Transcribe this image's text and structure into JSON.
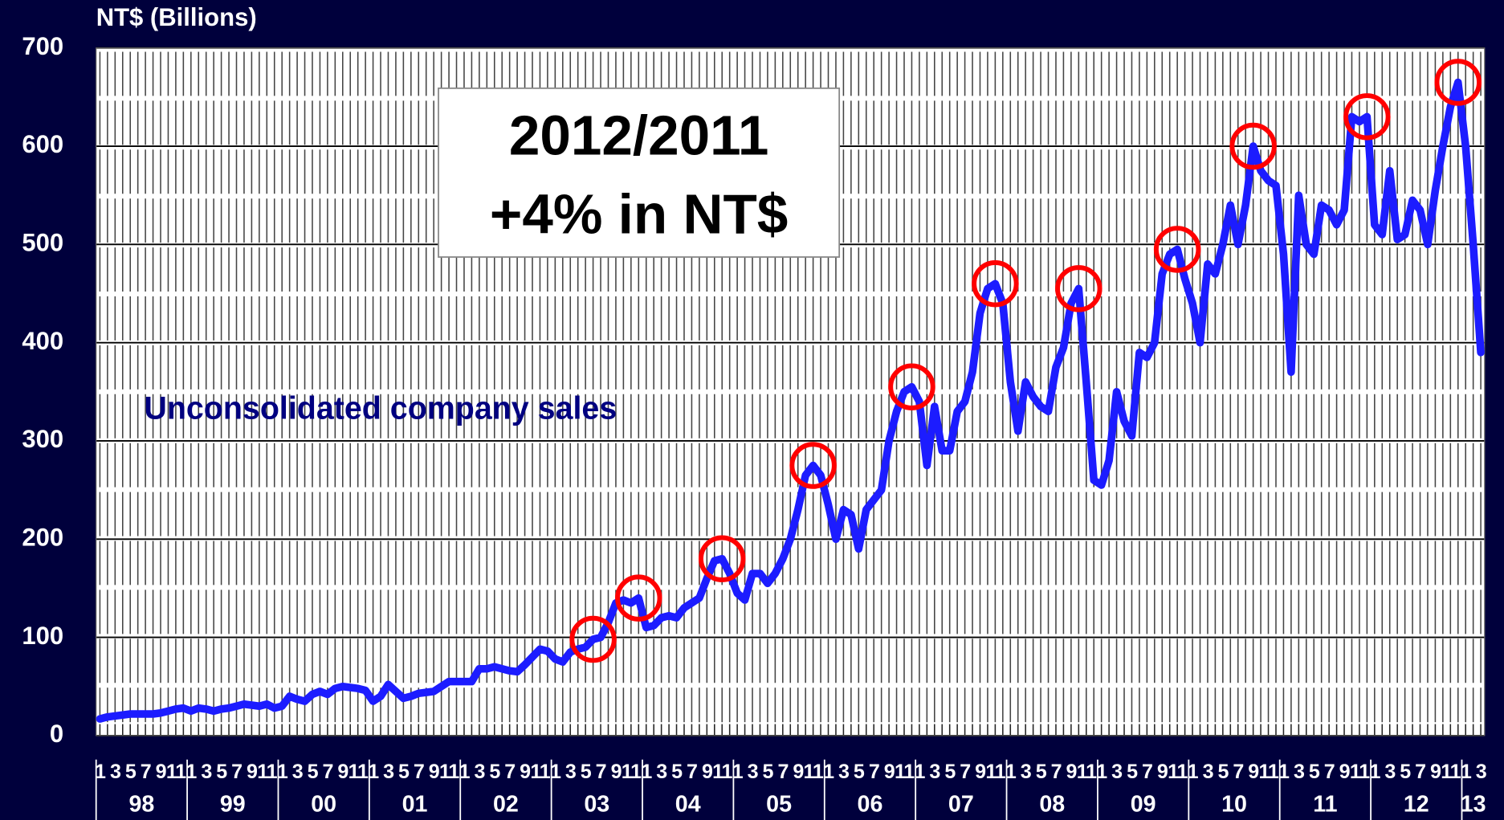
{
  "chart_data": {
    "type": "line",
    "y_axis_label": "NT$ (Billions)",
    "categories": [
      "1",
      null,
      "3",
      null,
      "5",
      null,
      "7",
      null,
      "9",
      null,
      "11",
      null,
      "1",
      null,
      "3",
      null,
      "5",
      null,
      "7",
      null,
      "9",
      null,
      "11",
      null,
      "1",
      null,
      "3",
      null,
      "5",
      null,
      "7",
      null,
      "9",
      null,
      "11",
      null,
      "1",
      null,
      "3",
      null,
      "5",
      null,
      "7",
      null,
      "9",
      null,
      "11",
      null,
      "1",
      null,
      "3",
      null,
      "5",
      null,
      "7",
      null,
      "9",
      null,
      "11",
      null,
      "1",
      null,
      "3",
      null,
      "5",
      null,
      "7",
      null,
      "9",
      null,
      "11",
      null,
      "1",
      null,
      "3",
      null,
      "5",
      null,
      "7",
      null,
      "9",
      null,
      "11",
      null,
      "1",
      null,
      "3",
      null,
      "5",
      null,
      "7",
      null,
      "9",
      null,
      "11",
      null,
      "1",
      null,
      "3",
      null,
      "5",
      null,
      "7",
      null,
      "9",
      null,
      "11",
      null,
      "1",
      null,
      "3",
      null,
      "5",
      null,
      "7",
      null,
      "9",
      null,
      "11",
      null,
      "1",
      null,
      "3",
      null,
      "5",
      null,
      "7",
      null,
      "9",
      null,
      "11",
      null,
      "1",
      null,
      "3",
      null,
      "5",
      null,
      "7",
      null,
      "9",
      null,
      "11",
      null,
      "1",
      null,
      "3",
      null,
      "5",
      null,
      "7",
      null,
      "9",
      null,
      "11",
      null,
      "1",
      null,
      "3",
      null,
      "5",
      null,
      "7",
      null,
      "9",
      null,
      "11",
      null,
      "1",
      null,
      "3",
      null,
      "5",
      null,
      "7",
      null,
      "9",
      null,
      "11",
      null,
      "1",
      null,
      "3"
    ],
    "year_labels": [
      "98",
      "99",
      "00",
      "01",
      "02",
      "03",
      "04",
      "05",
      "06",
      "07",
      "08",
      "09",
      "10",
      "11",
      "12",
      "13"
    ],
    "series": [
      {
        "name": "Unconsolidated company sales",
        "color": "#1c1cff",
        "values": [
          17,
          19,
          20,
          21,
          22,
          22,
          22,
          22,
          23,
          25,
          27,
          28,
          25,
          28,
          27,
          25,
          27,
          28,
          30,
          32,
          31,
          30,
          32,
          28,
          30,
          40,
          37,
          35,
          42,
          45,
          42,
          48,
          50,
          49,
          48,
          46,
          35,
          40,
          52,
          45,
          38,
          40,
          43,
          44,
          45,
          50,
          55,
          55,
          55,
          55,
          68,
          68,
          70,
          68,
          66,
          65,
          72,
          80,
          88,
          86,
          78,
          75,
          85,
          88,
          90,
          98,
          100,
          115,
          135,
          138,
          135,
          140,
          110,
          112,
          120,
          122,
          120,
          130,
          135,
          140,
          160,
          178,
          180,
          165,
          145,
          138,
          165,
          165,
          155,
          165,
          180,
          200,
          230,
          265,
          275,
          265,
          235,
          200,
          230,
          225,
          190,
          230,
          240,
          250,
          300,
          330,
          350,
          355,
          340,
          275,
          335,
          290,
          290,
          330,
          340,
          370,
          430,
          455,
          460,
          440,
          360,
          310,
          360,
          345,
          335,
          330,
          375,
          395,
          440,
          455,
          360,
          260,
          255,
          280,
          350,
          320,
          305,
          390,
          385,
          400,
          470,
          490,
          495,
          465,
          440,
          400,
          480,
          470,
          500,
          540,
          500,
          540,
          600,
          575,
          565,
          560,
          490,
          370,
          550,
          500,
          490,
          540,
          535,
          520,
          535,
          630,
          625,
          630,
          520,
          510,
          575,
          505,
          510,
          545,
          535,
          500,
          555,
          600,
          640,
          665,
          600,
          500,
          390
        ]
      }
    ],
    "ylim": [
      0,
      700
    ],
    "yticks": [
      0,
      100,
      200,
      300,
      400,
      500,
      600,
      700
    ],
    "grid": true,
    "annotation_box": [
      "2012/2011",
      "+4% in NT$"
    ],
    "highlighted_points": [
      65,
      71,
      82,
      94,
      107,
      118,
      129,
      142,
      152,
      167,
      179
    ],
    "highlight_color": "#ff0000"
  }
}
